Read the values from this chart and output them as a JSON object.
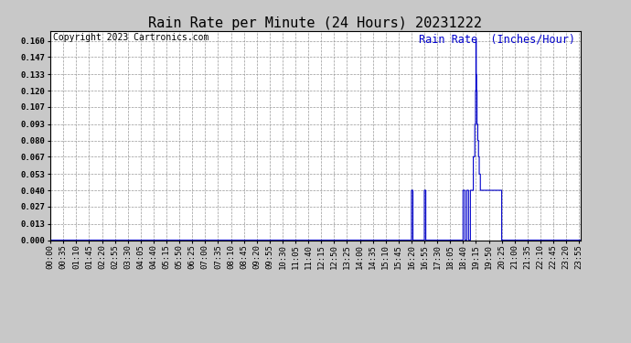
{
  "title": "Rain Rate per Minute (24 Hours) 20231222",
  "copyright_text": "Copyright 2023 Cartronics.com",
  "legend_text": "Rain Rate  (Inches/Hour)",
  "line_color": "#0000cc",
  "background_color": "#c8c8c8",
  "plot_bg_color": "#ffffff",
  "grid_color": "#999999",
  "ylim": [
    0.0,
    0.168
  ],
  "yticks": [
    0.0,
    0.013,
    0.027,
    0.04,
    0.053,
    0.067,
    0.08,
    0.093,
    0.107,
    0.12,
    0.133,
    0.147,
    0.16
  ],
  "total_minutes": 1440,
  "xtick_interval_min": 35,
  "title_fontsize": 11,
  "axis_fontsize": 6.5,
  "copyright_fontsize": 7,
  "legend_fontsize": 8.5,
  "figwidth": 6.9,
  "figheight": 3.75,
  "dpi": 100
}
